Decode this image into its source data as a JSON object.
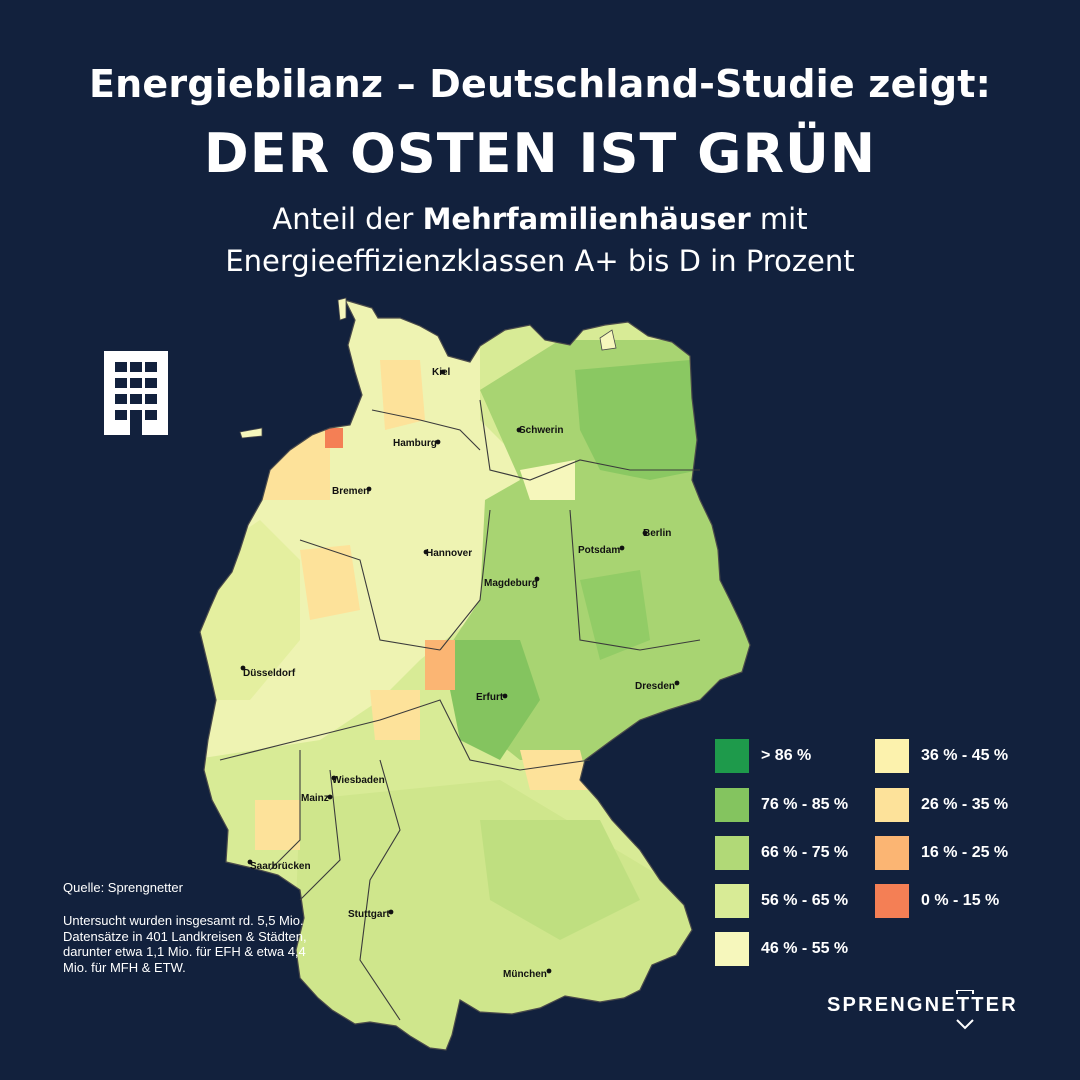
{
  "header": {
    "title_line1": "Energiebilanz – Deutschland-Studie zeigt:",
    "title_line2": "DER OSTEN IST GRÜN",
    "subtitle_line1_prefix": "Anteil der ",
    "subtitle_line1_bold": "Mehrfamilienhäuser",
    "subtitle_line1_suffix": " mit",
    "subtitle_line2": "Energieeffizienzklassen A+ bis D in Prozent"
  },
  "icons": {
    "building": "apartment-building-icon"
  },
  "map": {
    "type": "choropleth",
    "region": "Deutschland",
    "cities": [
      "Kiel",
      "Hamburg",
      "Schwerin",
      "Bremen",
      "Berlin",
      "Potsdam",
      "Hannover",
      "Magdeburg",
      "Düsseldorf",
      "Erfurt",
      "Dresden",
      "Wiesbaden",
      "Mainz",
      "Saarbrücken",
      "Stuttgart",
      "München"
    ]
  },
  "legend": {
    "items": [
      {
        "label": "> 86 %",
        "color": "#1e9a4b"
      },
      {
        "label": "76 % - 85 %",
        "color": "#84c45f"
      },
      {
        "label": "66 % - 75 %",
        "color": "#b1d977"
      },
      {
        "label": "56 % - 65 %",
        "color": "#d8eb96"
      },
      {
        "label": "46 % - 55 %",
        "color": "#f6f7bc"
      },
      {
        "label": "36 % - 45 %",
        "color": "#fcf2ad"
      },
      {
        "label": "26 % - 35 %",
        "color": "#fde29a"
      },
      {
        "label": "16 % - 25 %",
        "color": "#fbb573"
      },
      {
        "label": "0 % - 15 %",
        "color": "#f47f55"
      }
    ]
  },
  "footer": {
    "source": "Quelle: Sprengnetter",
    "note": "Untersucht wurden insgesamt rd. 5,5 Mio. Datensätze in 401 Landkreisen & Städten, darunter etwa 1,1 Mio. für EFH & etwa 4,4 Mio. für MFH & ETW.",
    "brand": "SPRENGNETTER"
  },
  "colors": {
    "background": "#12213d"
  }
}
